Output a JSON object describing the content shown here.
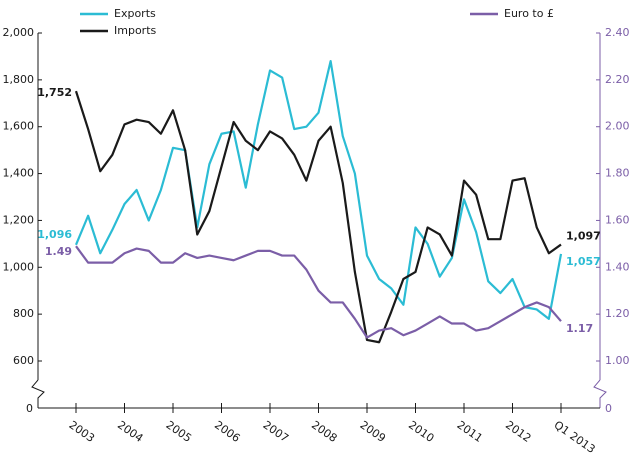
{
  "chart_data": {
    "type": "line",
    "categories": [
      "2003",
      null,
      null,
      null,
      "2004",
      null,
      null,
      null,
      "2005",
      null,
      null,
      null,
      "2006",
      null,
      null,
      null,
      "2007",
      null,
      null,
      null,
      "2008",
      null,
      null,
      null,
      "2009",
      null,
      null,
      null,
      "2010",
      null,
      null,
      null,
      "2011",
      null,
      null,
      null,
      "2012",
      null,
      null,
      null,
      "Q1 2013"
    ],
    "series": [
      {
        "name": "Exports",
        "color": "#2bbcd4",
        "values": [
          1096,
          1220,
          1060,
          1160,
          1270,
          1330,
          1200,
          1330,
          1510,
          1500,
          1170,
          1440,
          1570,
          1580,
          1340,
          1610,
          1840,
          1810,
          1590,
          1600,
          1660,
          1880,
          1560,
          1400,
          1050,
          950,
          910,
          840,
          1170,
          1100,
          960,
          1040,
          1290,
          1150,
          940,
          890,
          950,
          830,
          820,
          780,
          1057
        ],
        "value_labels": [
          "1,096",
          null,
          null,
          null,
          null,
          null,
          null,
          null,
          null,
          null,
          null,
          null,
          null,
          null,
          null,
          null,
          null,
          null,
          null,
          null,
          null,
          null,
          null,
          null,
          null,
          null,
          null,
          null,
          null,
          null,
          null,
          null,
          null,
          null,
          null,
          null,
          null,
          null,
          null,
          null,
          "1,057"
        ]
      },
      {
        "name": "Imports",
        "color": "#1a1a1a",
        "values": [
          1752,
          1590,
          1410,
          1480,
          1610,
          1630,
          1620,
          1570,
          1670,
          1500,
          1140,
          1240,
          1430,
          1620,
          1540,
          1500,
          1580,
          1550,
          1480,
          1370,
          1540,
          1600,
          1360,
          980,
          690,
          680,
          810,
          950,
          980,
          1170,
          1140,
          1050,
          1370,
          1310,
          1120,
          1120,
          1370,
          1380,
          1170,
          1060,
          1097
        ],
        "value_labels": [
          "1,752",
          null,
          null,
          null,
          null,
          null,
          null,
          null,
          null,
          null,
          null,
          null,
          null,
          null,
          null,
          null,
          null,
          null,
          null,
          null,
          null,
          null,
          null,
          null,
          null,
          null,
          null,
          null,
          null,
          null,
          null,
          null,
          null,
          null,
          null,
          null,
          null,
          null,
          null,
          null,
          "1,097"
        ]
      },
      {
        "name": "Euro to £",
        "color": "#7b5ea7",
        "axis": "y2",
        "values": [
          1.49,
          1.42,
          1.42,
          1.42,
          1.46,
          1.48,
          1.47,
          1.42,
          1.42,
          1.46,
          1.44,
          1.45,
          1.44,
          1.43,
          1.45,
          1.47,
          1.47,
          1.45,
          1.45,
          1.39,
          1.3,
          1.25,
          1.25,
          1.18,
          1.1,
          1.13,
          1.14,
          1.11,
          1.13,
          1.16,
          1.19,
          1.16,
          1.16,
          1.13,
          1.14,
          1.17,
          1.2,
          1.23,
          1.25,
          1.23,
          1.17
        ],
        "value_labels": [
          "1.49",
          null,
          null,
          null,
          null,
          null,
          null,
          null,
          null,
          null,
          null,
          null,
          null,
          null,
          null,
          null,
          null,
          null,
          null,
          null,
          null,
          null,
          null,
          null,
          null,
          null,
          null,
          null,
          null,
          null,
          null,
          null,
          null,
          null,
          null,
          null,
          null,
          null,
          null,
          null,
          "1.17"
        ]
      }
    ],
    "ylim": [
      600,
      2000
    ],
    "yticks": [
      600,
      800,
      {
        "value": 1000,
        "label": "1,000"
      },
      {
        "value": 1200,
        "label": "1,200"
      },
      {
        "value": 1400,
        "label": "1,400"
      },
      {
        "value": 1600,
        "label": "1,600"
      },
      {
        "value": 1800,
        "label": "1,800"
      },
      {
        "value": 2000,
        "label": "2,000"
      }
    ],
    "y2lim": [
      1,
      2.4
    ],
    "y2ticks": [
      {
        "value": 1,
        "label": "1.00"
      },
      {
        "value": 1.2,
        "label": "1.20"
      },
      {
        "value": 1.4,
        "label": "1.40"
      },
      {
        "value": 1.6,
        "label": "1.60"
      },
      {
        "value": 1.8,
        "label": "1.80"
      },
      {
        "value": 2,
        "label": "2.00"
      },
      {
        "value": 2.2,
        "label": "2.20"
      },
      {
        "value": 2.4,
        "label": "2.40"
      }
    ],
    "y_break_label": "0",
    "y2_break_label": "0"
  }
}
